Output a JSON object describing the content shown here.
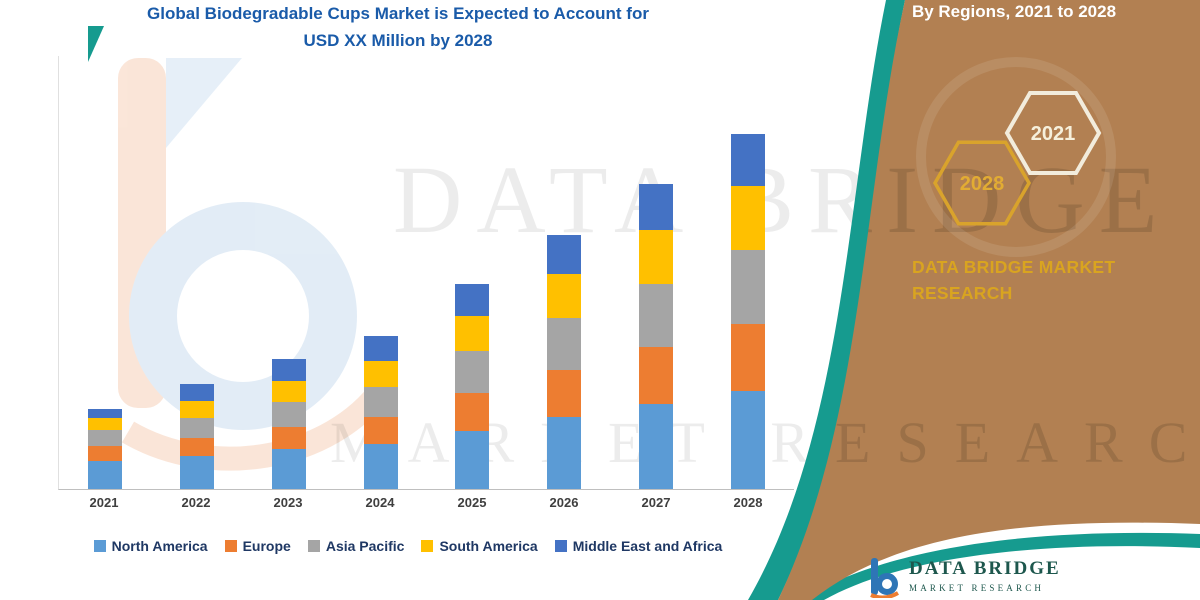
{
  "title": {
    "line1": "Global Biodegradable Cups Market is Expected to Account for",
    "line2": "USD XX Million by 2028"
  },
  "panel": {
    "heading": "By Regions, 2021 to 2028",
    "hexagons": [
      {
        "label": "2028",
        "outline": "#d9a32c",
        "text_color": "#e2ac33"
      },
      {
        "label": "2021",
        "outline": "#f2ecdc",
        "text_color": "#f6f0dc"
      }
    ],
    "brand_line1": "DATA BRIDGE MARKET",
    "brand_line2": "RESEARCH"
  },
  "watermark": {
    "line1": "DATA BRIDGE",
    "line2": "MARKET RESEARCH"
  },
  "footer": {
    "brand": "DATA BRIDGE",
    "sub": "MARKET RESEARCH"
  },
  "colors": {
    "title_blue": "#1a5ba9",
    "panel_brown": "#b28052",
    "accent_teal": "#169b8f",
    "brand_gold": "#d9a420",
    "legend_text": "#1f3864"
  },
  "chart_data": {
    "type": "bar",
    "stacked": true,
    "title": "Global Biodegradable Cups Market is Expected to Account for USD XX Million by 2028",
    "xlabel": "",
    "ylabel": "",
    "y_axis_labels_shown": false,
    "values_note": "No y-axis scale is shown (values hidden as USD XX Million); series values are relative index estimates read from bar heights, scaled so the 2028 total = 100",
    "categories": [
      "2021",
      "2022",
      "2023",
      "2024",
      "2025",
      "2026",
      "2027",
      "2028"
    ],
    "series": [
      {
        "name": "North America",
        "color": "#5b9bd5",
        "values": [
          7.9,
          9.3,
          11.3,
          12.7,
          16.3,
          20.3,
          23.9,
          27.6
        ]
      },
      {
        "name": "Europe",
        "color": "#ed7d31",
        "values": [
          4.2,
          5.1,
          6.2,
          7.6,
          10.7,
          13.2,
          16.1,
          18.9
        ]
      },
      {
        "name": "Asia Pacific",
        "color": "#a5a5a5",
        "values": [
          4.5,
          5.6,
          7.0,
          8.5,
          11.8,
          14.6,
          17.7,
          20.8
        ]
      },
      {
        "name": "South America",
        "color": "#ffc000",
        "values": [
          3.4,
          4.8,
          5.9,
          7.3,
          9.9,
          12.4,
          15.2,
          18.0
        ]
      },
      {
        "name": "Middle East and Africa",
        "color": "#4472c4",
        "values": [
          2.5,
          4.8,
          6.2,
          7.0,
          9.0,
          11.0,
          13.0,
          14.6
        ]
      }
    ],
    "legend_position": "bottom",
    "grid": false,
    "max_total": 100
  }
}
